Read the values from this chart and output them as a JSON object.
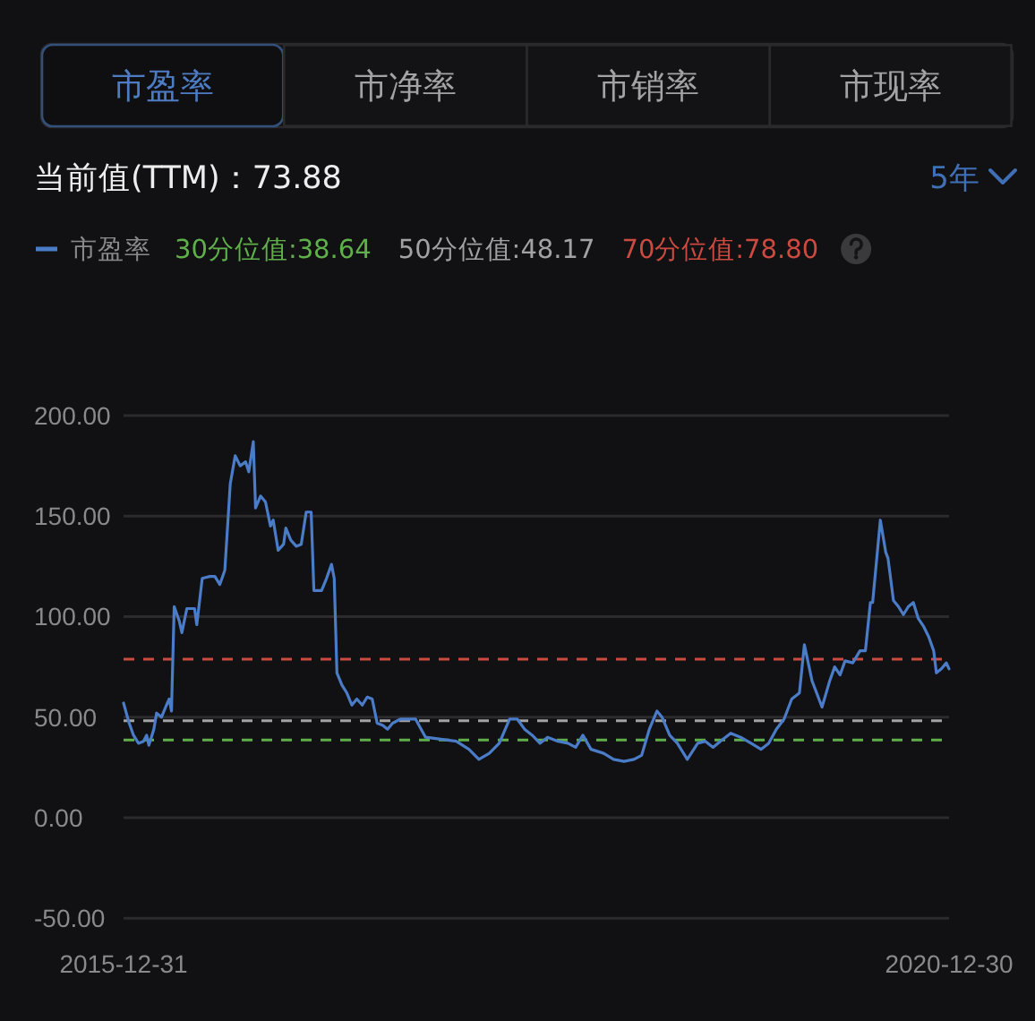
{
  "chart_data": {
    "type": "line",
    "title": "当前值(TTM)：73.88",
    "annotations": [
      "市盈率",
      "市净率",
      "市销率",
      "市现率",
      "5年"
    ],
    "x": [
      "2015-12-31",
      "2016-01-11",
      "2016-01-22",
      "2016-02-02",
      "2016-02-13",
      "2016-02-20",
      "2016-02-25",
      "2016-03-07",
      "2016-03-13",
      "2016-03-24",
      "2016-04-04",
      "2016-04-10",
      "2016-04-15",
      "2016-04-21",
      "2016-05-02",
      "2016-05-08",
      "2016-05-19",
      "2016-06-05",
      "2016-06-10",
      "2016-06-22",
      "2016-07-09",
      "2016-07-20",
      "2016-07-31",
      "2016-08-11",
      "2016-08-23",
      "2016-09-03",
      "2016-09-14",
      "2016-09-26",
      "2016-10-03",
      "2016-10-13",
      "2016-10-18",
      "2016-10-29",
      "2016-11-09",
      "2016-11-20",
      "2016-11-26",
      "2016-12-07",
      "2016-12-19",
      "2016-12-24",
      "2017-01-04",
      "2017-01-16",
      "2017-01-27",
      "2017-02-07",
      "2017-02-18",
      "2017-02-24",
      "2017-03-13",
      "2017-03-24",
      "2017-04-04",
      "2017-04-10",
      "2017-04-16",
      "2017-04-27",
      "2017-05-08",
      "2017-05-19",
      "2017-05-30",
      "2017-06-11",
      "2017-06-22",
      "2017-07-03",
      "2017-07-14",
      "2017-07-26",
      "2017-08-06",
      "2017-08-17",
      "2017-09-03",
      "2017-10-07",
      "2017-10-29",
      "2018-01-05",
      "2018-02-02",
      "2018-02-24",
      "2018-03-19",
      "2018-04-10",
      "2018-05-03",
      "2018-05-20",
      "2018-06-05",
      "2018-06-22",
      "2018-07-09",
      "2018-07-26",
      "2018-08-18",
      "2018-09-09",
      "2018-09-26",
      "2018-10-12",
      "2018-10-30",
      "2018-11-27",
      "2018-12-19",
      "2019-01-11",
      "2019-02-02",
      "2019-02-19",
      "2019-03-08",
      "2019-03-25",
      "2019-04-05",
      "2019-04-22",
      "2019-05-09",
      "2019-05-31",
      "2019-06-23",
      "2019-07-10",
      "2019-07-27",
      "2019-08-12",
      "2019-09-04",
      "2019-09-26",
      "2019-10-19",
      "2019-11-10",
      "2019-11-27",
      "2019-12-14",
      "2019-12-31",
      "2020-01-17",
      "2020-02-03",
      "2020-02-14",
      "2020-03-02",
      "2020-03-24",
      "2020-04-10",
      "2020-04-21",
      "2020-05-03",
      "2020-05-14",
      "2020-05-31",
      "2020-06-16",
      "2020-06-28",
      "2020-07-09",
      "2020-07-14",
      "2020-07-31",
      "2020-08-12",
      "2020-08-17",
      "2020-08-29",
      "2020-09-09",
      "2020-09-20",
      "2020-10-01",
      "2020-10-12",
      "2020-10-23",
      "2020-11-04",
      "2020-11-15",
      "2020-11-26",
      "2020-12-02",
      "2020-12-13",
      "2020-12-24",
      "2020-12-30"
    ],
    "series": [
      {
        "name": "市盈率",
        "color": "#4a7cc8",
        "values": [
          57,
          48,
          41,
          37,
          38,
          41,
          36,
          44,
          52,
          50,
          56,
          59,
          53,
          105,
          98,
          92,
          104,
          104,
          96,
          119,
          120,
          120,
          116,
          123,
          166,
          180,
          175,
          177,
          172,
          187,
          154,
          160,
          157,
          145,
          148,
          133,
          136,
          144,
          138,
          135,
          136,
          152,
          152,
          113,
          113,
          119,
          126,
          119,
          72,
          66,
          62,
          56,
          59,
          56,
          60,
          59,
          47,
          46,
          44,
          47,
          49,
          49,
          40,
          38,
          34,
          29,
          32,
          37,
          49,
          49,
          44,
          41,
          37,
          40,
          38,
          37,
          35,
          41,
          34,
          32,
          29,
          28,
          29,
          31,
          44,
          53,
          50,
          41,
          37,
          29,
          37,
          38,
          35,
          38,
          42,
          40,
          37,
          34,
          37,
          44,
          49,
          59,
          62,
          86,
          68,
          55,
          68,
          75,
          71,
          78,
          77,
          83,
          83,
          107,
          107,
          148,
          132,
          129,
          108,
          105,
          101,
          105,
          107,
          99,
          95,
          90,
          83,
          72,
          74,
          77,
          74
        ]
      }
    ],
    "xlim": [
      "2015-12-31",
      "2020-12-30"
    ],
    "xticks": [
      "2015-12-31",
      "2020-12-30"
    ],
    "ylim": [
      -50,
      200
    ],
    "yticks": [
      {
        "value": -50,
        "label": "-50.00"
      },
      {
        "value": 0,
        "label": "0.00"
      },
      {
        "value": 50,
        "label": "50.00"
      },
      {
        "value": 100,
        "label": "100.00"
      },
      {
        "value": 150,
        "label": "150.00"
      },
      {
        "value": 200,
        "label": "200.00"
      }
    ],
    "ref_lines": [
      {
        "axis": "y",
        "value": 38.64,
        "label": "30分位值:38.64",
        "color": "#5fb04a",
        "line_style": "dashed"
      },
      {
        "axis": "y",
        "value": 48.17,
        "label": "50分位值:48.17",
        "color": "#a2a2a2",
        "line_style": "dashed"
      },
      {
        "axis": "y",
        "value": 78.8,
        "label": "70分位值:78.80",
        "color": "#cc4a40",
        "line_style": "dashed"
      }
    ],
    "grid": "y",
    "legend": "top left"
  }
}
